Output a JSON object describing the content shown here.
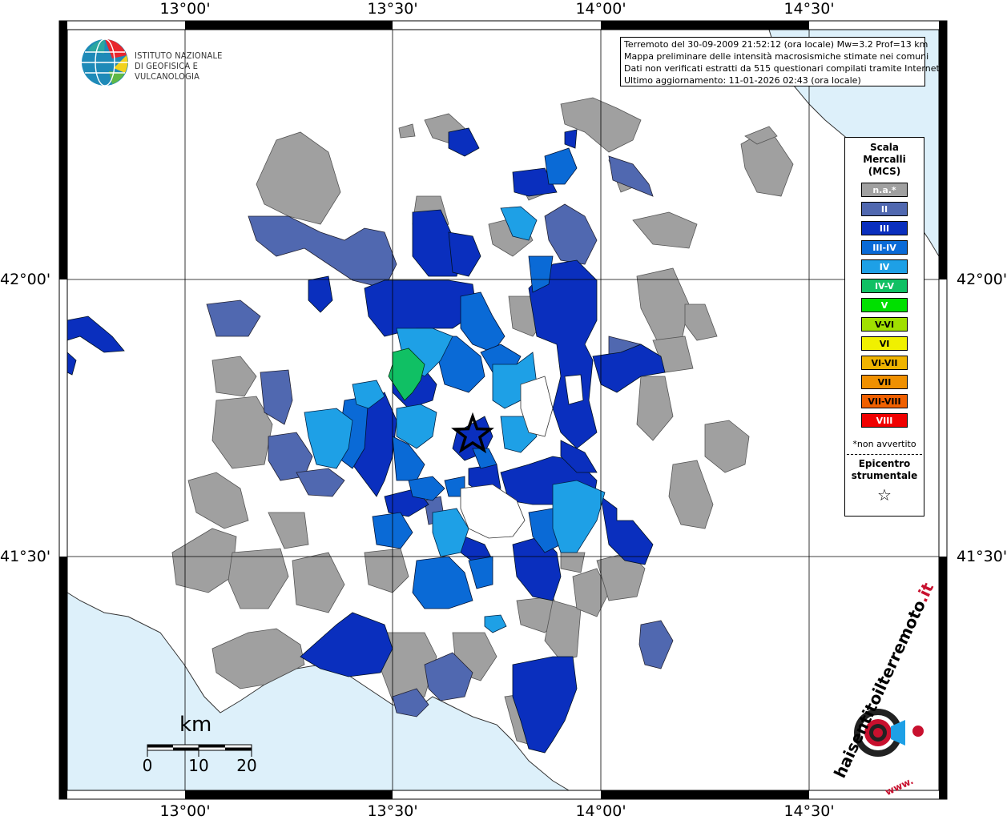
{
  "map": {
    "lon_labels": [
      "13°00'",
      "13°30'",
      "14°00'",
      "14°30'"
    ],
    "lat_labels": [
      "42°00'",
      "41°30'"
    ],
    "epicenter_icon": "star-icon"
  },
  "logo": {
    "line1": "ISTITUTO NAZIONALE",
    "line2": "DI GEOFISICA E VULCANOLOGIA",
    "icon": "ingv-globe-icon"
  },
  "info": {
    "line1": "Terremoto del 30-09-2009 21:52:12 (ora locale) Mw=3.2 Prof=13 km",
    "line2": "Mappa preliminare delle intensità macrosismiche stimate nei comuni",
    "line3": "Dati non verificati estratti da 515 questionari compilati tramite Internet.",
    "line4": "Ultimo aggiornamento: 11-01-2026 02:43 (ora locale)"
  },
  "legend": {
    "title_line1": "Scala",
    "title_line2": "Mercalli",
    "title_line3": "(MCS)",
    "items": [
      {
        "label": "n.a.*",
        "color": "#a0a0a0"
      },
      {
        "label": "II",
        "color": "#5068b0"
      },
      {
        "label": "III",
        "color": "#0a2fbe"
      },
      {
        "label": "III-IV",
        "color": "#0a6ad6"
      },
      {
        "label": "IV",
        "color": "#1ea0e6"
      },
      {
        "label": "IV-V",
        "color": "#10c064"
      },
      {
        "label": "V",
        "color": "#00e000"
      },
      {
        "label": "V-VI",
        "color": "#a0e000"
      },
      {
        "label": "VI",
        "color": "#f0f000"
      },
      {
        "label": "VI-VII",
        "color": "#f0b400"
      },
      {
        "label": "VII",
        "color": "#f09000"
      },
      {
        "label": "VII-VIII",
        "color": "#f06000"
      },
      {
        "label": "VIII",
        "color": "#f00000"
      }
    ],
    "note": "*non avvertito",
    "epicenter_line1": "Epicentro",
    "epicenter_line2": "strumentale",
    "star": "☆"
  },
  "scalebar": {
    "unit": "km",
    "labels": [
      "0",
      "10",
      "20"
    ]
  },
  "hst": {
    "text_main": "haisentitoilterremoto",
    "text_tld": ".it",
    "text_www": "www.",
    "icon": "speaker-target-icon"
  }
}
